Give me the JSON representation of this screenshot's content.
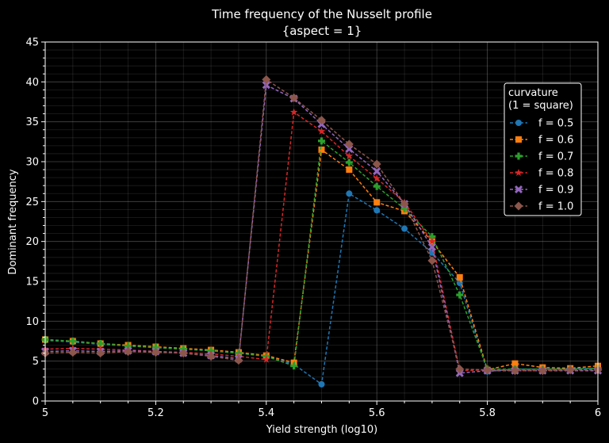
{
  "chart_data": {
    "type": "line",
    "title": "Time frequency of the Nusselt profile",
    "subtitle": "{aspect = 1}",
    "xlabel": "Yield strength (log10)",
    "ylabel": "Dominant frequency",
    "xlim": [
      5,
      6
    ],
    "ylim": [
      0,
      45
    ],
    "xticks": [
      5,
      5.2,
      5.4,
      5.6,
      5.8,
      6
    ],
    "xtick_labels": [
      "5",
      "5.2",
      "5.4",
      "5.6",
      "5.8",
      "6"
    ],
    "yticks": [
      0,
      5,
      10,
      15,
      20,
      25,
      30,
      35,
      40,
      45
    ],
    "ytick_labels": [
      "0",
      "5",
      "10",
      "15",
      "20",
      "25",
      "30",
      "35",
      "40",
      "45"
    ],
    "grid": true,
    "legend": {
      "title_line1": "curvature",
      "title_line2": "(1 = square)",
      "placement": "right"
    },
    "x": [
      5.0,
      5.05,
      5.1,
      5.15,
      5.2,
      5.25,
      5.3,
      5.35,
      5.4,
      5.45,
      5.5,
      5.55,
      5.6,
      5.65,
      5.7,
      5.75,
      5.8,
      5.85,
      5.9,
      5.95,
      6.0
    ],
    "series": [
      {
        "name": "f = 0.5",
        "color": "#1f77b4",
        "marker": "circle",
        "values": [
          7.6,
          7.4,
          7.1,
          6.9,
          6.7,
          6.5,
          6.3,
          6.0,
          5.6,
          4.6,
          2.1,
          26.0,
          23.9,
          21.6,
          18.6,
          14.8,
          3.7,
          4.0,
          4.0,
          4.0,
          4.1
        ]
      },
      {
        "name": "f = 0.6",
        "color": "#ff7f0e",
        "marker": "square",
        "values": [
          7.7,
          7.5,
          7.2,
          7.0,
          6.8,
          6.6,
          6.4,
          6.1,
          5.7,
          4.8,
          31.5,
          29.0,
          24.9,
          23.8,
          20.0,
          15.5,
          3.9,
          4.7,
          4.2,
          4.1,
          4.4
        ]
      },
      {
        "name": "f = 0.7",
        "color": "#2ca02c",
        "marker": "plus",
        "values": [
          7.7,
          7.5,
          7.2,
          6.9,
          6.7,
          6.5,
          6.3,
          6.0,
          5.6,
          4.4,
          32.6,
          29.9,
          26.9,
          24.1,
          20.6,
          13.3,
          4.0,
          4.0,
          4.0,
          4.0,
          4.1
        ]
      },
      {
        "name": "f = 0.8",
        "color": "#d62728",
        "marker": "star",
        "values": [
          6.5,
          6.6,
          6.5,
          6.4,
          6.2,
          6.1,
          5.9,
          5.6,
          5.2,
          36.2,
          33.8,
          30.7,
          27.9,
          24.9,
          20.0,
          3.8,
          3.9,
          3.9,
          3.9,
          3.9,
          3.9
        ]
      },
      {
        "name": "f = 0.9",
        "color": "#9467bd",
        "marker": "x",
        "values": [
          6.2,
          6.3,
          6.2,
          6.3,
          6.2,
          6.0,
          5.7,
          5.3,
          39.6,
          37.9,
          34.7,
          31.6,
          28.8,
          24.7,
          19.3,
          3.5,
          3.8,
          3.8,
          3.8,
          3.8,
          3.8
        ]
      },
      {
        "name": "f = 1.0",
        "color": "#8c564b",
        "marker": "diamond",
        "values": [
          6.0,
          6.1,
          6.0,
          6.2,
          6.1,
          6.0,
          5.6,
          5.1,
          40.3,
          38.0,
          35.2,
          32.2,
          29.7,
          24.7,
          17.6,
          4.0,
          3.9,
          3.8,
          3.8,
          3.9,
          3.9
        ]
      }
    ]
  }
}
